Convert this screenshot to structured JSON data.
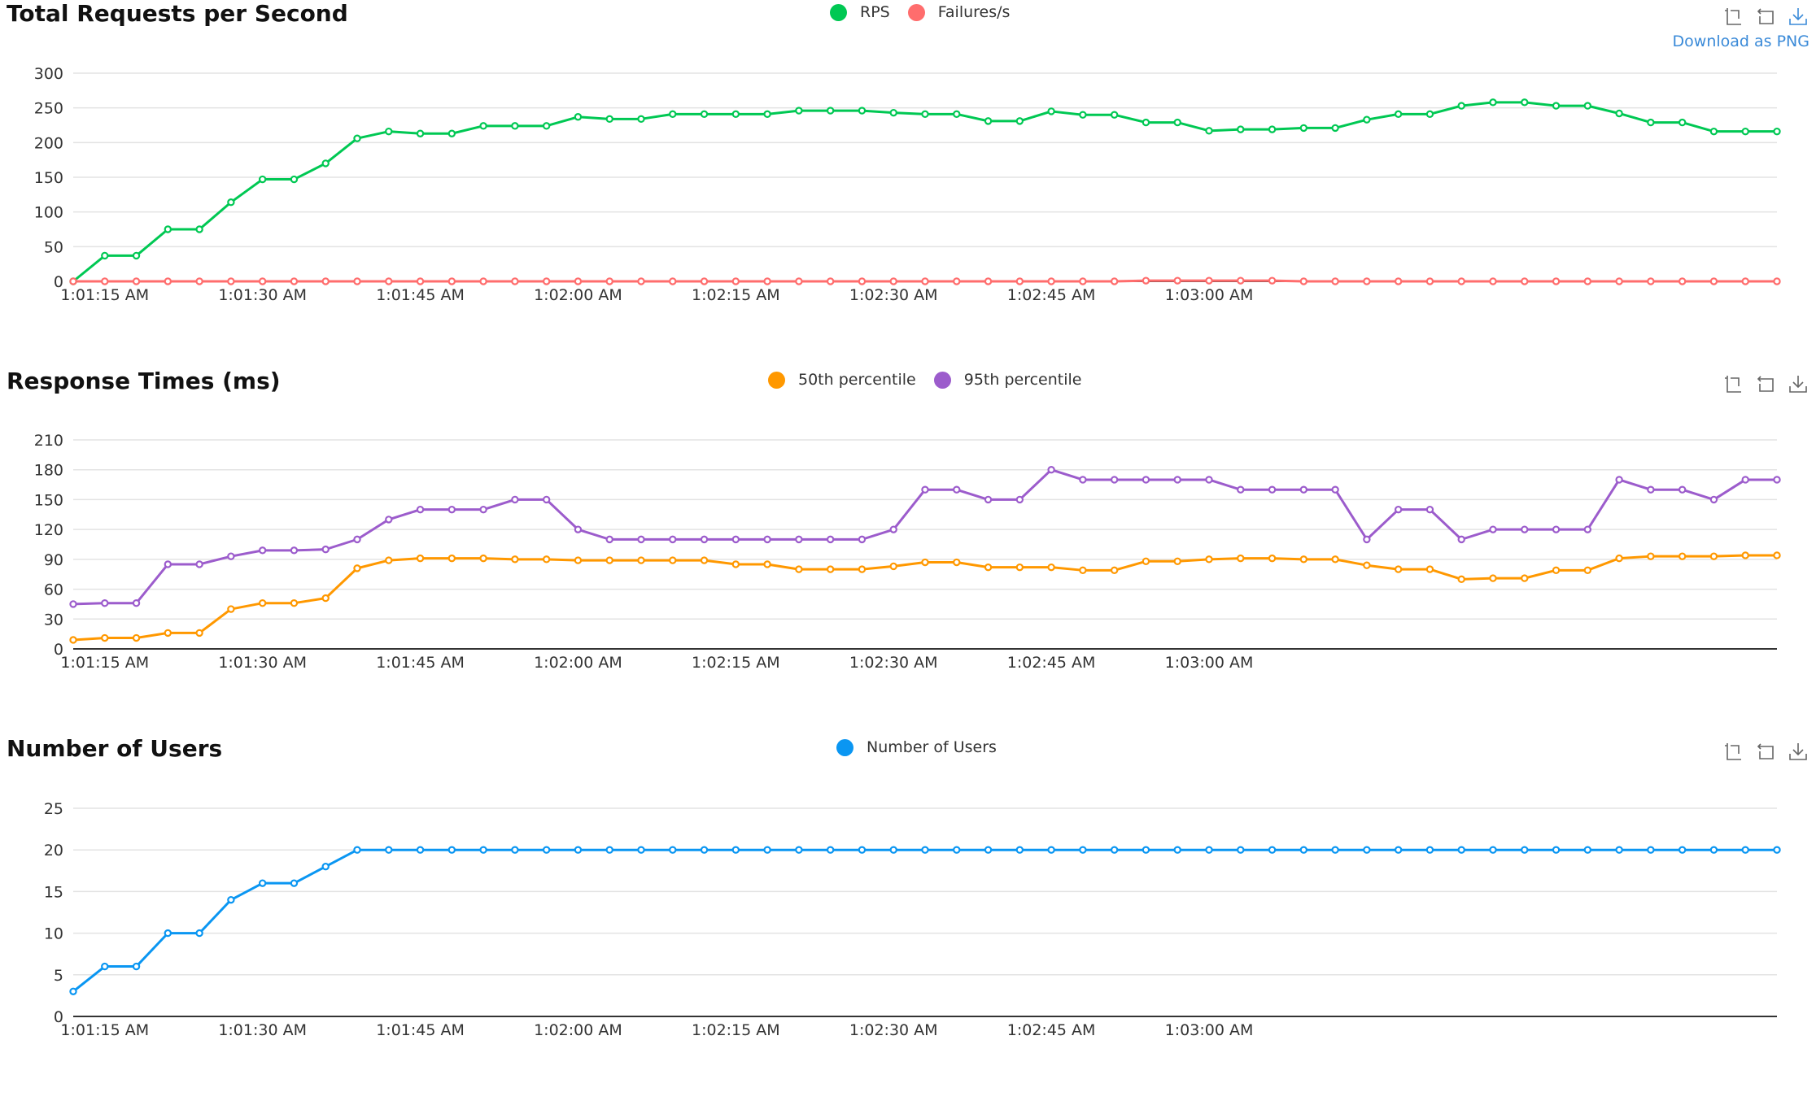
{
  "colors": {
    "rps": "#00c853",
    "failures": "#ff6d6d",
    "p50": "#ff9800",
    "p95": "#9c5ccc",
    "users": "#0a96f2",
    "grid": "#e3e3e3",
    "axis": "#333333",
    "tooltip": "#3a8ad8"
  },
  "toolbox": {
    "icons": [
      "zoom-icon",
      "restore-icon",
      "download-icon"
    ],
    "download_tooltip": "Download as PNG"
  },
  "chart_data": [
    {
      "type": "line",
      "title": "Total Requests per Second",
      "x_ticks": [
        "1:01:15 AM",
        "1:01:30 AM",
        "1:01:45 AM",
        "1:02:00 AM",
        "1:02:15 AM",
        "1:02:30 AM",
        "1:02:45 AM",
        "1:03:00 AM"
      ],
      "ylim": [
        0,
        300
      ],
      "y_ticks": [
        0,
        50,
        100,
        150,
        200,
        250,
        300
      ],
      "grid": true,
      "legend_position": "top-center",
      "series": [
        {
          "name": "RPS",
          "color": "#00c853",
          "values": [
            0,
            37,
            37,
            75,
            75,
            114,
            147,
            147,
            170,
            206,
            216,
            213,
            213,
            224,
            224,
            224,
            237,
            234,
            234,
            241,
            241,
            241,
            241,
            246,
            246,
            246,
            243,
            241,
            241,
            231,
            231,
            245,
            240,
            240,
            229,
            229,
            217,
            219,
            219,
            221,
            221,
            233,
            241,
            241,
            253,
            258,
            258,
            253,
            253,
            242,
            229,
            229,
            216,
            216,
            216
          ]
        },
        {
          "name": "Failures/s",
          "color": "#ff6d6d",
          "values": [
            0,
            0,
            0,
            0,
            0,
            0,
            0,
            0,
            0,
            0,
            0,
            0,
            0,
            0,
            0,
            0,
            0,
            0,
            0,
            0,
            0,
            0,
            0,
            0,
            0,
            0,
            0,
            0,
            0,
            0,
            0,
            0,
            0,
            0,
            1,
            1,
            1,
            1,
            1,
            0,
            0,
            0,
            0,
            0,
            0,
            0,
            0,
            0,
            0,
            0,
            0,
            0,
            0,
            0,
            0
          ]
        }
      ]
    },
    {
      "type": "line",
      "title": "Response Times (ms)",
      "x_ticks": [
        "1:01:15 AM",
        "1:01:30 AM",
        "1:01:45 AM",
        "1:02:00 AM",
        "1:02:15 AM",
        "1:02:30 AM",
        "1:02:45 AM",
        "1:03:00 AM"
      ],
      "ylim": [
        0,
        210
      ],
      "y_ticks": [
        0,
        30,
        60,
        90,
        120,
        150,
        180,
        210
      ],
      "grid": true,
      "legend_position": "top-center",
      "series": [
        {
          "name": "50th percentile",
          "color": "#ff9800",
          "values": [
            9,
            11,
            11,
            16,
            16,
            40,
            46,
            46,
            51,
            81,
            89,
            91,
            91,
            91,
            90,
            90,
            89,
            89,
            89,
            89,
            89,
            85,
            85,
            80,
            80,
            80,
            83,
            87,
            87,
            82,
            82,
            82,
            79,
            79,
            88,
            88,
            90,
            91,
            91,
            90,
            90,
            84,
            80,
            80,
            70,
            71,
            71,
            79,
            79,
            91,
            93,
            93,
            93,
            94,
            94
          ]
        },
        {
          "name": "95th percentile",
          "color": "#9c5ccc",
          "values": [
            45,
            46,
            46,
            85,
            85,
            93,
            99,
            99,
            100,
            110,
            130,
            140,
            140,
            140,
            150,
            150,
            120,
            110,
            110,
            110,
            110,
            110,
            110,
            110,
            110,
            110,
            120,
            160,
            160,
            150,
            150,
            180,
            170,
            170,
            170,
            170,
            170,
            160,
            160,
            160,
            160,
            110,
            140,
            140,
            110,
            120,
            120,
            120,
            120,
            170,
            160,
            160,
            150,
            170,
            170
          ]
        }
      ]
    },
    {
      "type": "line",
      "title": "Number of Users",
      "x_ticks": [
        "1:01:15 AM",
        "1:01:30 AM",
        "1:01:45 AM",
        "1:02:00 AM",
        "1:02:15 AM",
        "1:02:30 AM",
        "1:02:45 AM",
        "1:03:00 AM"
      ],
      "ylim": [
        0,
        25
      ],
      "y_ticks": [
        0,
        5,
        10,
        15,
        20,
        25
      ],
      "grid": true,
      "legend_position": "top-center",
      "series": [
        {
          "name": "Number of Users",
          "color": "#0a96f2",
          "values": [
            3,
            6,
            6,
            10,
            10,
            14,
            16,
            16,
            18,
            20,
            20,
            20,
            20,
            20,
            20,
            20,
            20,
            20,
            20,
            20,
            20,
            20,
            20,
            20,
            20,
            20,
            20,
            20,
            20,
            20,
            20,
            20,
            20,
            20,
            20,
            20,
            20,
            20,
            20,
            20,
            20,
            20,
            20,
            20,
            20,
            20,
            20,
            20,
            20,
            20,
            20,
            20,
            20,
            20,
            20
          ]
        }
      ]
    }
  ]
}
